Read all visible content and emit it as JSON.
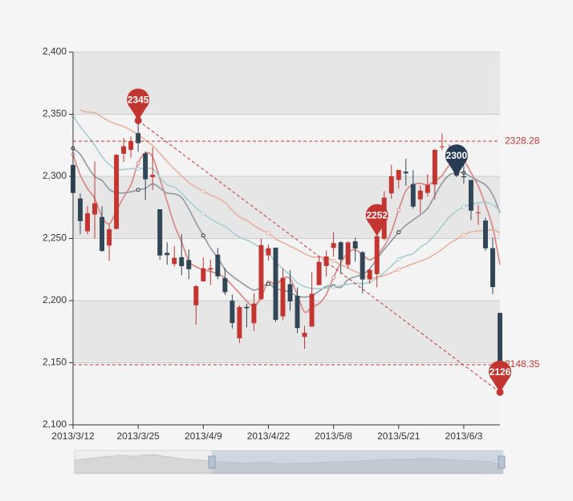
{
  "chart_data": {
    "type": "candlestick",
    "categories": [
      "2013/3/12",
      null,
      null,
      null,
      null,
      null,
      null,
      null,
      null,
      "2013/3/25",
      null,
      null,
      null,
      null,
      null,
      null,
      null,
      null,
      "2013/4/9",
      null,
      null,
      null,
      null,
      null,
      null,
      null,
      null,
      "2013/4/22",
      null,
      null,
      null,
      null,
      null,
      null,
      null,
      null,
      "2013/5/8",
      null,
      null,
      null,
      null,
      null,
      null,
      null,
      null,
      "2013/5/21",
      null,
      null,
      null,
      null,
      null,
      null,
      null,
      null,
      "2013/6/3",
      null,
      null,
      null,
      null,
      null
    ],
    "open": [
      2309.16,
      2282.17,
      2255.77,
      2269.31,
      2267.29,
      2244.26,
      2257.74,
      2318.21,
      2321.4,
      2334.74,
      2318.58,
      2299.38,
      2273.55,
      2238.49,
      2229.46,
      2234.9,
      2232.69,
      2196.24,
      2215.47,
      2224.93,
      2236.98,
      2218.09,
      2199.91,
      2169.63,
      2195.03,
      2181.82,
      2201.12,
      2236.4,
      2242.62,
      2187.35,
      2213.19,
      2203.89,
      2170.78,
      2179.05,
      2212.5,
      2227.86,
      2242.39,
      2246.96,
      2228.82,
      2247.68,
      2238.9,
      2217.09,
      2221.34,
      2249.81,
      2286.33,
      2297.11,
      2303.75,
      2293.81,
      2281.45,
      2286.66,
      2293.4,
      2323.54,
      2316.25,
      2320.74,
      2300.21,
      2297.1,
      2270.71,
      2264.43,
      2242.26,
      2190.1
    ],
    "close": [
      2286.6,
      2263.97,
      2270.28,
      2278.4,
      2240.02,
      2257.43,
      2317.37,
      2324.24,
      2328.28,
      2326.72,
      2297.67,
      2301.26,
      2236.3,
      2236.62,
      2234.4,
      2227.74,
      2225.29,
      2211.59,
      2225.77,
      2226.13,
      2219.55,
      2206.78,
      2181.94,
      2194.85,
      2193.8,
      2197.6,
      2244.64,
      2242.17,
      2184.54,
      2218.32,
      2199.31,
      2177.91,
      2174.12,
      2205.5,
      2231.17,
      2235.57,
      2246.3,
      2232.97,
      2246.83,
      2241.92,
      2217.01,
      2224.8,
      2251.81,
      2282.87,
      2299.99,
      2305.11,
      2302.4,
      2275.67,
      2288.53,
      2293.08,
      2321.32,
      2324.02,
      2317.75,
      2300.59,
      2299.25,
      2272.42,
      2270.93,
      2242.11,
      2210.9,
      2148.35
    ],
    "low": [
      2264.83,
      2253.25,
      2253.31,
      2250,
      2239.21,
      2232.02,
      2257.42,
      2311.6,
      2314.97,
      2319.91,
      2281.12,
      2289,
      2232.91,
      2228.81,
      2227.31,
      2220.44,
      2217.25,
      2180.67,
      2215.47,
      2212.56,
      2217.26,
      2204.44,
      2177.39,
      2165.78,
      2178.47,
      2175.44,
      2200.58,
      2232.26,
      2182.81,
      2184.11,
      2191.85,
      2173.86,
      2161.14,
      2179.05,
      2212.5,
      2219.44,
      2235.42,
      2221.38,
      2225.81,
      2231.36,
      2205.87,
      2213.58,
      2210.77,
      2248.41,
      2281.9,
      2290.12,
      2292.43,
      2274.1,
      2270.25,
      2283.94,
      2281.47,
      2321.17,
      2310.49,
      2299.37,
      2294.11,
      2264.76,
      2260.87,
      2240.07,
      2205.07,
      2126.22
    ],
    "high": [
      2333.29,
      2286.33,
      2276.22,
      2312.08,
      2276.05,
      2261.31,
      2317.86,
      2330.81,
      2332,
      2344.89,
      2319.99,
      2323.48,
      2273.55,
      2246.87,
      2243.95,
      2253.42,
      2241.34,
      2212.59,
      2234.73,
      2233.04,
      2242.48,
      2226.26,
      2204.99,
      2196.43,
      2197.51,
      2206.03,
      2250.11,
      2245.12,
      2242.62,
      2226.12,
      2224.63,
      2210.58,
      2179.65,
      2222.81,
      2236.07,
      2240.26,
      2255.21,
      2247.86,
      2247.67,
      2250.85,
      2239.93,
      2225.19,
      2252.87,
      2288.09,
      2309.39,
      2305.3,
      2314.18,
      2304.95,
      2292.59,
      2301.7,
      2322.1,
      2334.33,
      2325.72,
      2325.53,
      2313.43,
      2297.1,
      2276.86,
      2266.69,
      2250.63,
      2190.1
    ],
    "up_color": "#c23531",
    "down_color": "#314656",
    "series": [
      {
        "color": "#d9827f",
        "values": [
          2317.6,
          2301,
          2290.2,
          2282,
          2267.8,
          2261.8,
          2272.4,
          2283.2,
          2293.2,
          2310.6,
          2318.8,
          2315.6,
          2298,
          2279.8,
          2261.2,
          2247.2,
          2232,
          2227.2,
          2225,
          2223.4,
          2221.8,
          2218.2,
          2212.2,
          2206,
          2199.6,
          2195.2,
          2202.8,
          2214.8,
          2212.8,
          2217.6,
          2217.8,
          2204.4,
          2190.8,
          2195,
          2197.6,
          2205,
          2218.6,
          2230.4,
          2238.6,
          2240.8,
          2237,
          2232.8,
          2236.6,
          2243.8,
          2255.4,
          2273,
          2288.4,
          2293.2,
          2294.4,
          2293,
          2296.2,
          2300.6,
          2309,
          2311.4,
          2312.6,
          2302.8,
          2292.2,
          2277,
          2259,
          2228.8
        ]
      },
      {
        "color": "#8e979e",
        "values": [
          2322.6,
          2317.7,
          2308.1,
          2299.9,
          2296.6,
          2289.7,
          2286.7,
          2286.7,
          2287.6,
          2289.2,
          2290.3,
          2294,
          2290.6,
          2286.5,
          2285.9,
          2283,
          2273.8,
          2262.6,
          2252.4,
          2242.3,
          2234.5,
          2225.1,
          2219.7,
          2215.5,
          2211.5,
          2208.5,
          2210.5,
          2213.5,
          2209.4,
          2208.6,
          2206.5,
          2203.6,
          2202.8,
          2203.9,
          2207.6,
          2211.4,
          2211.5,
          2210.6,
          2216.8,
          2219.2,
          2221,
          2225.7,
          2233.5,
          2241.2,
          2248.1,
          2255,
          2260.6,
          2264.9,
          2269.1,
          2274.2,
          2284.6,
          2294.5,
          2301.1,
          2302.9,
          2302.8,
          2299.5,
          2296.4,
          2293,
          2285.2,
          2270.7
        ]
      },
      {
        "color": "#a6cdd1",
        "values": [
          2348.6,
          2340.1,
          2332.7,
          2325,
          2315.9,
          2309.6,
          2305.6,
          2305.5,
          2306.2,
          2306.2,
          2306.5,
          2305.9,
          2299.4,
          2293.2,
          2291.3,
          2286.4,
          2280.3,
          2274.7,
          2270,
          2265.8,
          2262.4,
          2259.6,
          2255.2,
          2251,
          2248.7,
          2245.8,
          2242.2,
          2238.1,
          2230.9,
          2225.5,
          2220.5,
          2214.4,
          2211.3,
          2209.7,
          2209.6,
          2210,
          2211,
          2212.1,
          2213.1,
          2213.9,
          2213.8,
          2214.7,
          2218.2,
          2222.6,
          2227.9,
          2233.2,
          2236.1,
          2237.8,
          2243,
          2246.7,
          2252.8,
          2260.1,
          2267.3,
          2272.1,
          2275.5,
          2277.3,
          2278.5,
          2279,
          2277.2,
          2272.5
        ]
      },
      {
        "color": "#e8b09c",
        "values": [
          null,
          2353.3,
          2351.7,
          2351.2,
          2347.7,
          2344.3,
          2342.1,
          2340.1,
          2337,
          2333.7,
          2329.2,
          2324.7,
          2318.6,
          2312.1,
          2305.9,
          2300.7,
          2295,
          2291.2,
          2288.2,
          2284.9,
          2282.5,
          2278.9,
          2272.8,
          2267.3,
          2264.7,
          2260.4,
          2257,
          2254.3,
          2249.8,
          2246.7,
          2243.8,
          2240.9,
          2237.7,
          2235.3,
          2235,
          2234.3,
          2231.9,
          2228.9,
          2226.2,
          2223.4,
          2220.7,
          2218.1,
          2218.7,
          2220.2,
          2222.4,
          2225,
          2227.5,
          2229.7,
          2231.8,
          2234,
          2237.4,
          2241.3,
          2245.8,
          2249.3,
          2252.8,
          2255.3,
          2256.2,
          2256.2,
          2257,
          2254.7
        ]
      }
    ],
    "mark_points": [
      {
        "index": 9,
        "value": 2345,
        "color": "#c23531"
      },
      {
        "index": 42,
        "value": 2252,
        "color": "#c23531"
      },
      {
        "index": 53,
        "value": 2300,
        "color": "#293c55"
      },
      {
        "index": 59,
        "value": 2126,
        "color": "#c23531"
      }
    ],
    "mark_lines": [
      2328.28,
      2148.35
    ],
    "mark_line_color": "#c23531",
    "trend_line": {
      "start_index": 9,
      "start": 2344.89,
      "end_index": 59,
      "end": 2126.22
    },
    "ylim": [
      2100,
      2400
    ],
    "yticks": [
      {
        "value": 2100,
        "label": "2,100"
      },
      {
        "value": 2150,
        "label": "2,150"
      },
      {
        "value": 2200,
        "label": "2,200"
      },
      {
        "value": 2250,
        "label": "2,250"
      },
      {
        "value": 2300,
        "label": "2,300"
      },
      {
        "value": 2350,
        "label": "2,350"
      },
      {
        "value": 2400,
        "label": "2,400"
      }
    ],
    "grid": true
  }
}
